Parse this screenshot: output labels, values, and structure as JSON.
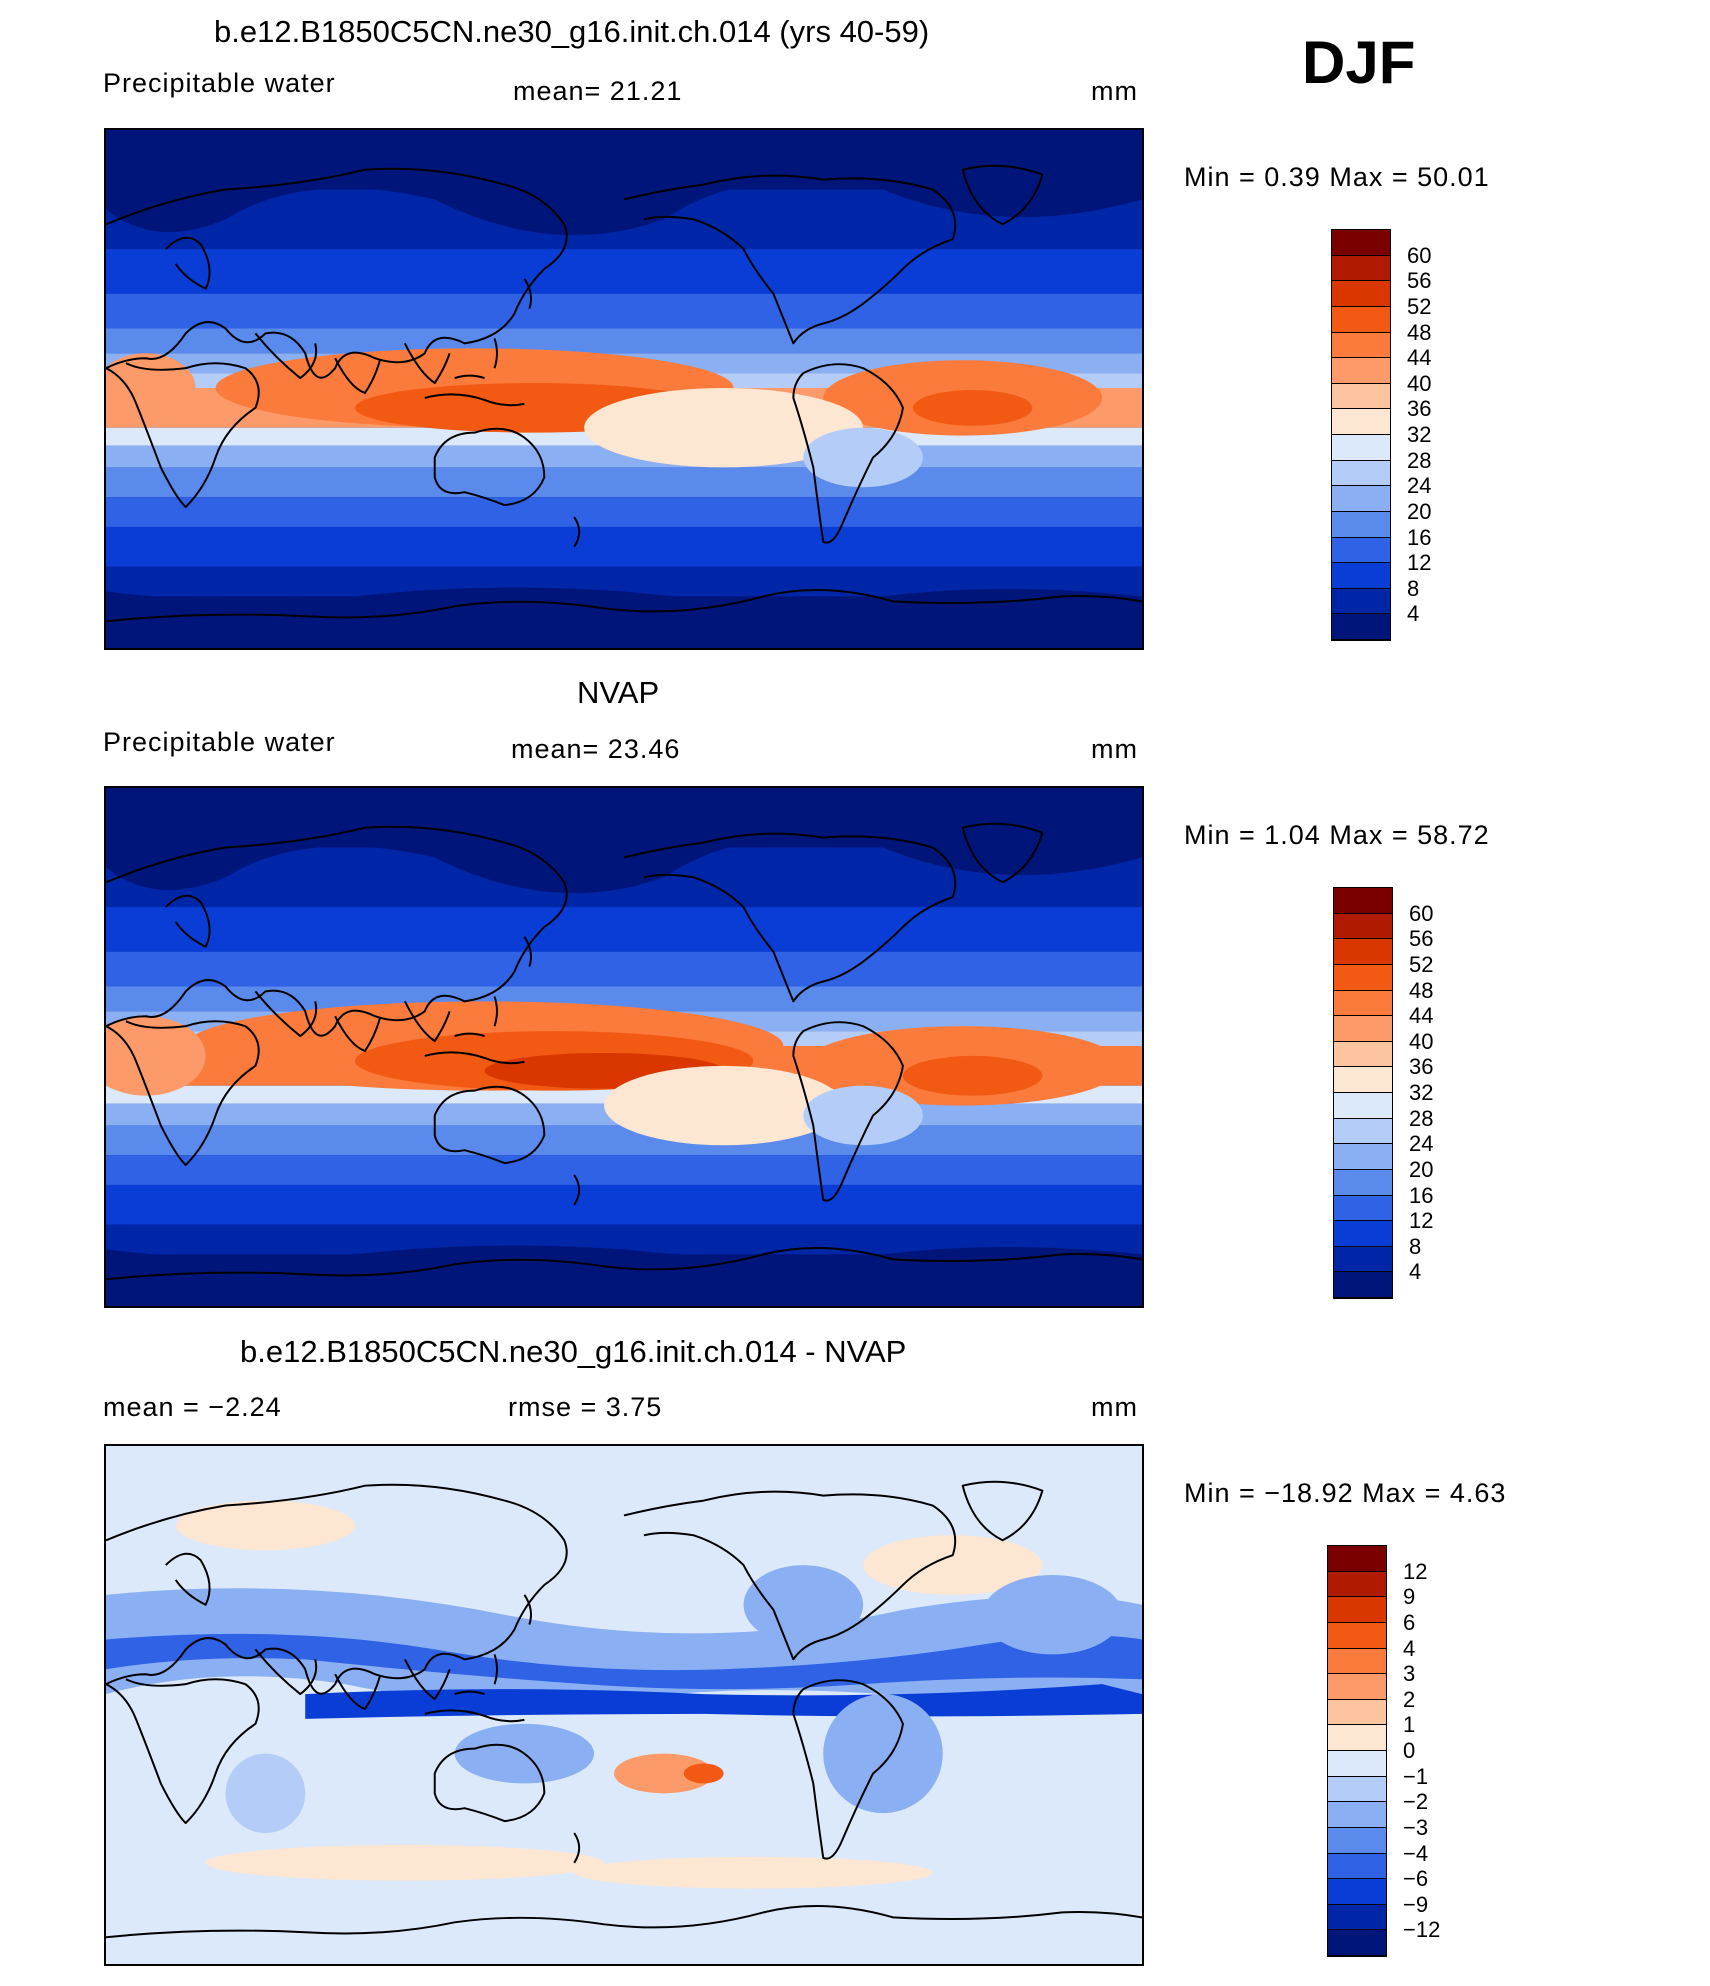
{
  "season": "DJF",
  "panels": [
    {
      "title": "b.e12.B1850C5CN.ne30_g16.init.ch.014 (yrs 40-59)",
      "left_label": "Precipitable  water",
      "center_label": "mean=   21.21",
      "units": "mm",
      "minmax": "Min  =     0.39  Max  =    50.01",
      "field": "model"
    },
    {
      "title": "NVAP",
      "left_label": "Precipitable  water",
      "center_label": "mean=   23.46",
      "units": "mm",
      "minmax": "Min  =     1.04  Max  =    58.72",
      "field": "obs"
    },
    {
      "title": "b.e12.B1850C5CN.ne30_g16.init.ch.014 - NVAP",
      "left_label": "mean  =    −2.24",
      "center_label": "rmse  =     3.75",
      "units": "mm",
      "minmax": "Min  =  −18.92  Max  =     4.63",
      "field": "diff"
    }
  ],
  "colorbars": {
    "abs": {
      "labels": [
        "60",
        "56",
        "52",
        "48",
        "44",
        "40",
        "36",
        "32",
        "28",
        "24",
        "20",
        "16",
        "12",
        "8",
        "4"
      ],
      "colors": [
        "#7a0000",
        "#b01a00",
        "#d93600",
        "#f25a14",
        "#fb7b3c",
        "#fc9a6a",
        "#fdc4a0",
        "#fde6d2",
        "#dbe9fb",
        "#b3cdf8",
        "#8aaff2",
        "#5a8bec",
        "#2f62e5",
        "#0a3dd6",
        "#0026a8",
        "#00157a"
      ]
    },
    "diff": {
      "labels": [
        "12",
        "9",
        "6",
        "4",
        "3",
        "2",
        "1",
        "0",
        "−1",
        "−2",
        "−3",
        "−4",
        "−6",
        "−9",
        "−12"
      ],
      "colors": [
        "#7a0000",
        "#b01a00",
        "#d93600",
        "#f25a14",
        "#fb7b3c",
        "#fc9a6a",
        "#fdc4a0",
        "#fde6d2",
        "#dbe9fb",
        "#b3cdf8",
        "#8aaff2",
        "#5a8bec",
        "#2f62e5",
        "#0a3dd6",
        "#0026a8",
        "#00157a"
      ]
    }
  }
}
